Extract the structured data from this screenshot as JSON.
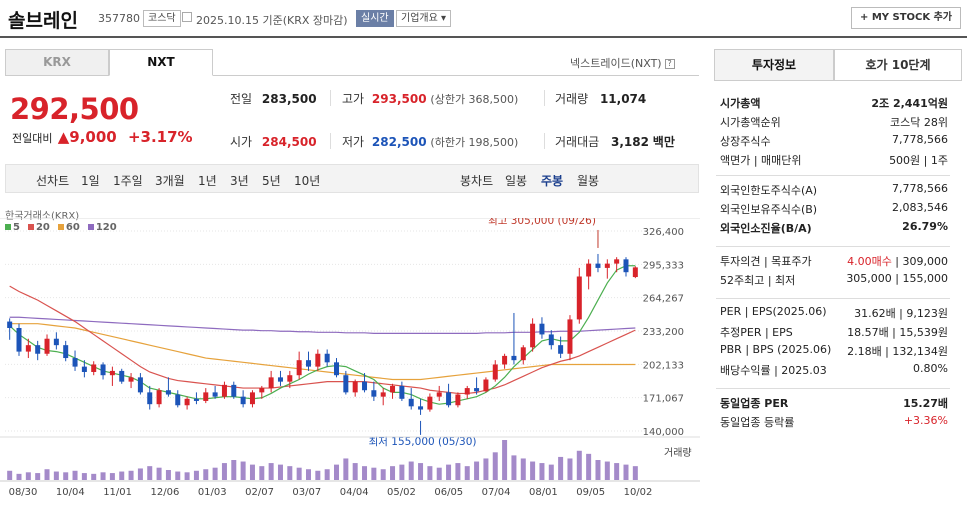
{
  "header": {
    "name": "솔브레인",
    "code": "357780",
    "market_badge": "코스닥",
    "date_text": "2025.10.15 기준(KRX 장마감)",
    "realtime_badge": "실시간",
    "overview_label": "기업개요 ▾",
    "mystock_label": "+ MY STOCK 추가"
  },
  "exchange_tabs": [
    "KRX",
    "NXT"
  ],
  "nxt_note": "넥스트레이드(NXT)",
  "price": {
    "current": "292,500",
    "change_label": "전일대비",
    "change_value": "▲9,000",
    "change_pct": "+3.17%"
  },
  "quote": {
    "prev_label": "전일",
    "prev": "283,500",
    "high_label": "고가",
    "high": "293,500",
    "upper_limit": "(상한가 368,500)",
    "volume_label": "거래량",
    "volume": "11,074",
    "open_label": "시가",
    "open": "284,500",
    "low_label": "저가",
    "low": "282,500",
    "lower_limit": "(하한가 198,500)",
    "amount_label": "거래대금",
    "amount": "3,182",
    "amount_unit": "백만"
  },
  "chart_toolbar": {
    "line_label": "선차트",
    "periods": [
      "1일",
      "1주일",
      "3개월",
      "1년",
      "3년",
      "5년",
      "10년"
    ],
    "candle_label": "봉차트",
    "candles": [
      "일봉",
      "주봉",
      "월봉"
    ],
    "selected": "주봉"
  },
  "legend": {
    "source": "한국거래소(KRX)",
    "items": [
      {
        "name": "5",
        "color": "#4caf50"
      },
      {
        "name": "20",
        "color": "#d9534f"
      },
      {
        "name": "60",
        "color": "#e6a23c"
      },
      {
        "name": "120",
        "color": "#8e6bbf"
      }
    ]
  },
  "chart_data": {
    "type": "candlestick",
    "y_ticks": [
      "326,400",
      "295,333",
      "264,267",
      "233,200",
      "202,133",
      "171,067",
      "140,000"
    ],
    "ylim": [
      140000,
      326400
    ],
    "x_ticks": [
      "08/30",
      "10/04",
      "11/01",
      "12/06",
      "01/03",
      "02/07",
      "03/07",
      "04/04",
      "05/02",
      "06/05",
      "07/04",
      "08/01",
      "09/05",
      "10/02"
    ],
    "annotation_high": "최고 305,000 (09/26)",
    "annotation_low": "최저 155,000 (05/30)",
    "volume_label": "거래량",
    "candles": [
      [
        242000,
        245000,
        225000,
        236000
      ],
      [
        236000,
        240000,
        210000,
        214000
      ],
      [
        214000,
        226000,
        208000,
        220000
      ],
      [
        220000,
        224000,
        206000,
        212000
      ],
      [
        212000,
        230000,
        210000,
        226000
      ],
      [
        226000,
        232000,
        216000,
        220000
      ],
      [
        220000,
        224000,
        205000,
        208000
      ],
      [
        208000,
        215000,
        196000,
        200000
      ],
      [
        200000,
        206000,
        190000,
        195000
      ],
      [
        195000,
        205000,
        192000,
        202000
      ],
      [
        202000,
        204000,
        188000,
        192000
      ],
      [
        192000,
        200000,
        182000,
        196000
      ],
      [
        196000,
        198000,
        184000,
        186000
      ],
      [
        186000,
        194000,
        180000,
        190000
      ],
      [
        190000,
        194000,
        174000,
        176000
      ],
      [
        176000,
        182000,
        160000,
        165000
      ],
      [
        165000,
        180000,
        162000,
        178000
      ],
      [
        178000,
        190000,
        172000,
        174000
      ],
      [
        174000,
        178000,
        162000,
        164000
      ],
      [
        164000,
        172000,
        160000,
        170000
      ],
      [
        170000,
        176000,
        165000,
        168000
      ],
      [
        168000,
        180000,
        166000,
        176000
      ],
      [
        176000,
        182000,
        170000,
        172000
      ],
      [
        172000,
        186000,
        170000,
        183000
      ],
      [
        183000,
        186000,
        170000,
        172000
      ],
      [
        172000,
        178000,
        162000,
        165000
      ],
      [
        165000,
        178000,
        162000,
        176000
      ],
      [
        176000,
        182000,
        170000,
        180000
      ],
      [
        180000,
        196000,
        176000,
        190000
      ],
      [
        190000,
        196000,
        182000,
        186000
      ],
      [
        186000,
        196000,
        180000,
        192000
      ],
      [
        192000,
        214000,
        188000,
        206000
      ],
      [
        206000,
        214000,
        196000,
        200000
      ],
      [
        200000,
        216000,
        196000,
        212000
      ],
      [
        212000,
        216000,
        200000,
        204000
      ],
      [
        204000,
        208000,
        190000,
        192000
      ],
      [
        192000,
        196000,
        174000,
        176000
      ],
      [
        176000,
        188000,
        172000,
        186000
      ],
      [
        186000,
        194000,
        176000,
        178000
      ],
      [
        178000,
        186000,
        168000,
        172000
      ],
      [
        172000,
        180000,
        164000,
        176000
      ],
      [
        176000,
        184000,
        170000,
        182000
      ],
      [
        182000,
        186000,
        168000,
        170000
      ],
      [
        170000,
        180000,
        160000,
        163000
      ],
      [
        163000,
        170000,
        155000,
        160000
      ],
      [
        160000,
        175000,
        158000,
        172000
      ],
      [
        172000,
        182000,
        168000,
        176000
      ],
      [
        176000,
        184000,
        162000,
        164000
      ],
      [
        164000,
        176000,
        162000,
        174000
      ],
      [
        174000,
        182000,
        170000,
        180000
      ],
      [
        180000,
        190000,
        174000,
        177000
      ],
      [
        177000,
        190000,
        176000,
        188000
      ],
      [
        188000,
        206000,
        186000,
        202000
      ],
      [
        202000,
        212000,
        198000,
        210000
      ],
      [
        210000,
        250000,
        202000,
        206000
      ],
      [
        206000,
        220000,
        202000,
        218000
      ],
      [
        218000,
        245000,
        214000,
        240000
      ],
      [
        240000,
        246000,
        226000,
        230000
      ],
      [
        230000,
        234000,
        216000,
        220000
      ],
      [
        220000,
        228000,
        208000,
        212000
      ],
      [
        212000,
        248000,
        206000,
        244000
      ],
      [
        244000,
        292000,
        240000,
        284000
      ],
      [
        284000,
        300000,
        272000,
        296000
      ],
      [
        296000,
        305000,
        288000,
        292000
      ],
      [
        292000,
        300000,
        282000,
        296000
      ],
      [
        296000,
        302000,
        288000,
        300000
      ],
      [
        300000,
        302000,
        284000,
        288000
      ],
      [
        283500,
        293500,
        282500,
        292500
      ]
    ],
    "ma5": [
      238000,
      230000,
      224000,
      218000,
      215000,
      214000,
      212000,
      208000,
      204000,
      200000,
      196000,
      194000,
      192000,
      190000,
      186000,
      180000,
      178000,
      176000,
      174000,
      172000,
      170000,
      170000,
      171000,
      172000,
      172000,
      171000,
      170000,
      171000,
      175000,
      180000,
      184000,
      188000,
      193000,
      197000,
      200000,
      201000,
      200000,
      196000,
      192000,
      188000,
      180000,
      176000,
      176000,
      174000,
      170000,
      167000,
      165000,
      166000,
      168000,
      170000,
      172000,
      176000,
      182000,
      190000,
      200000,
      208000,
      216000,
      224000,
      226000,
      224000,
      224000,
      232000,
      246000,
      262000,
      278000,
      290000,
      294000,
      294000
    ],
    "ma20": [
      275000,
      270000,
      266000,
      262000,
      257000,
      252000,
      247000,
      242000,
      236000,
      230000,
      224000,
      218000,
      212000,
      206000,
      200000,
      195000,
      192000,
      189000,
      187000,
      186000,
      185000,
      184000,
      183000,
      182000,
      181000,
      180000,
      180000,
      180000,
      180000,
      181000,
      182000,
      183000,
      184000,
      185000,
      186000,
      186000,
      186000,
      186000,
      186000,
      185000,
      184000,
      183000,
      182000,
      181000,
      180000,
      178000,
      177000,
      176000,
      175000,
      175000,
      176000,
      178000,
      180000,
      183000,
      187000,
      191000,
      195000,
      199000,
      202000,
      205000,
      207000,
      210000,
      214000,
      218000,
      222000,
      226000,
      230000,
      234000
    ],
    "ma60": [
      240000,
      240000,
      240000,
      240000,
      239000,
      238000,
      237000,
      236000,
      234000,
      232000,
      230000,
      228000,
      226000,
      224000,
      222000,
      220000,
      218000,
      216000,
      214000,
      212000,
      210000,
      208000,
      207000,
      206000,
      205000,
      204000,
      203000,
      202000,
      201000,
      200000,
      199000,
      198000,
      197000,
      196000,
      195000,
      194000,
      193000,
      192000,
      191000,
      190000,
      189000,
      188000,
      188000,
      188000,
      188000,
      189000,
      190000,
      191000,
      192000,
      193000,
      194000,
      195000,
      196000,
      197000,
      198000,
      199000,
      200000,
      201000,
      202000,
      202000,
      202000,
      202000,
      202000,
      202000,
      202000,
      202000,
      202000,
      202000
    ],
    "ma120": [
      246000,
      246000,
      245500,
      245000,
      244500,
      244000,
      243500,
      243000,
      242500,
      242000,
      241500,
      241000,
      240500,
      240000,
      239500,
      239000,
      238500,
      238000,
      237500,
      237000,
      236500,
      236000,
      235500,
      235000,
      234500,
      234000,
      234000,
      233500,
      233500,
      233000,
      233000,
      232500,
      232500,
      232000,
      232000,
      232000,
      231500,
      231500,
      231500,
      231000,
      231000,
      231000,
      231000,
      231000,
      231000,
      231000,
      231000,
      231000,
      231000,
      231000,
      231000,
      231500,
      231500,
      231500,
      232000,
      232000,
      232000,
      232500,
      232500,
      233000,
      233000,
      233000,
      233500,
      234000,
      234500,
      235000,
      235500,
      236000
    ],
    "volumes": [
      12,
      8,
      10,
      9,
      14,
      11,
      10,
      12,
      9,
      8,
      10,
      9,
      11,
      12,
      15,
      18,
      16,
      13,
      11,
      10,
      12,
      14,
      16,
      22,
      26,
      24,
      20,
      18,
      22,
      20,
      18,
      16,
      14,
      12,
      14,
      20,
      28,
      22,
      18,
      16,
      14,
      18,
      20,
      24,
      22,
      18,
      16,
      20,
      22,
      18,
      24,
      28,
      36,
      52,
      32,
      28,
      24,
      22,
      20,
      30,
      28,
      38,
      34,
      26,
      24,
      22,
      20,
      18
    ]
  },
  "panel": {
    "tabs": [
      "투자정보",
      "호가 10단계"
    ],
    "group1": [
      [
        "시가총액",
        "2조 2,441억원"
      ],
      [
        "시가총액순위",
        "코스닥 28위"
      ],
      [
        "상장주식수",
        "7,778,566"
      ],
      [
        "액면가 | 매매단위",
        "500원 | 1주"
      ]
    ],
    "group2": [
      [
        "외국인한도주식수(A)",
        "7,778,566"
      ],
      [
        "외국인보유주식수(B)",
        "2,083,546"
      ],
      [
        "외국인소진율(B/A)",
        "26.79%"
      ]
    ],
    "group3": [
      [
        "투자의견 | 목표주가",
        "4.00매수 | 309,000"
      ],
      [
        "52주최고 | 최저",
        "305,000 | 155,000"
      ]
    ],
    "group4": [
      [
        "PER | EPS(2025.06)",
        "31.62배 | 9,123원"
      ],
      [
        "추정PER | EPS",
        "18.57배 | 15,539원"
      ],
      [
        "PBR | BPS (2025.06)",
        "2.18배 | 132,134원"
      ],
      [
        "배당수익률 | 2025.03",
        "0.80%"
      ]
    ],
    "group5": [
      [
        "동일업종 PER",
        "15.27배"
      ],
      [
        "동일업종 등락률",
        "+3.36%"
      ]
    ]
  }
}
